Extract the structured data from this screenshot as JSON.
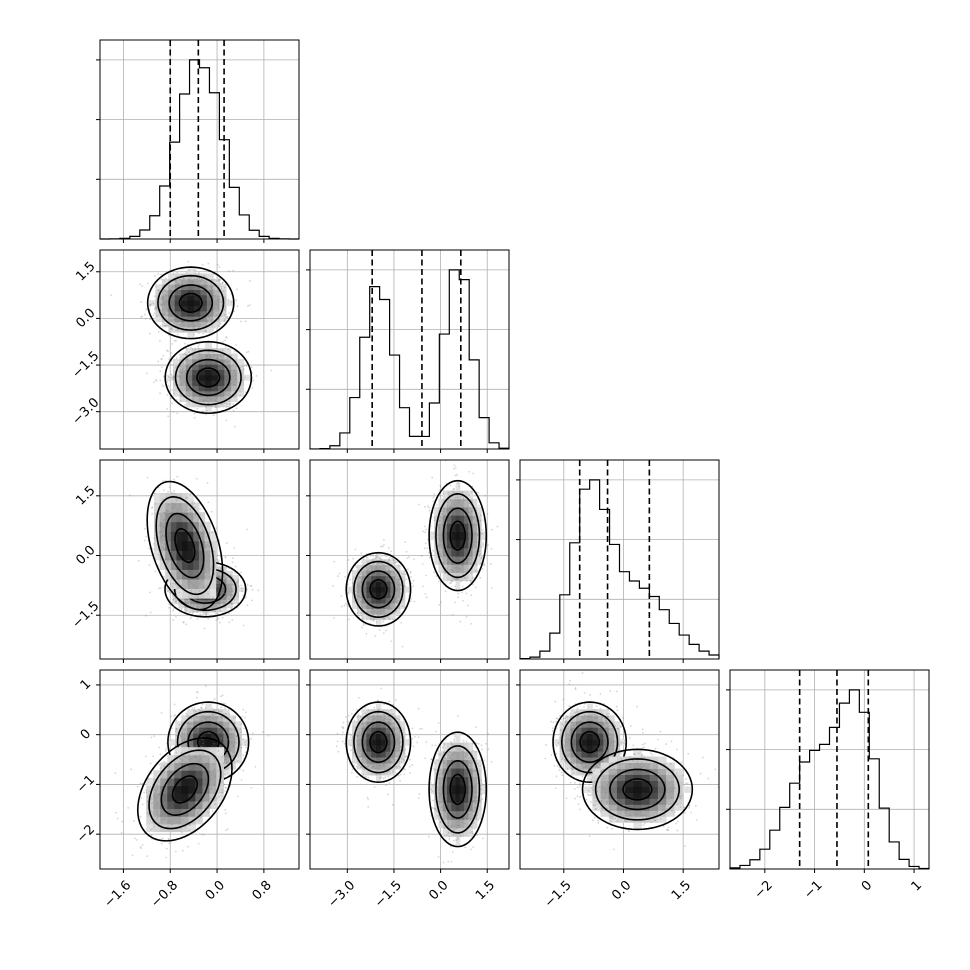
{
  "chart_data": {
    "type": "corner",
    "grid": true,
    "parameters": [
      {
        "index": 0,
        "range": [
          -2.0,
          1.4
        ],
        "ticks": [
          -1.6,
          -0.8,
          0.0,
          0.8
        ],
        "tick_labels": [
          "−1.6",
          "−0.8",
          "0.0",
          "0.8"
        ],
        "quantiles": [
          -0.8,
          -0.32,
          0.12
        ],
        "modes": [
          {
            "mean": -0.3,
            "sd": 0.38,
            "weight": 1.0
          }
        ]
      },
      {
        "index": 1,
        "range": [
          -4.2,
          2.2
        ],
        "ticks": [
          -3.0,
          -1.5,
          0.0,
          1.5
        ],
        "tick_labels": [
          "−3.0",
          "−1.5",
          "0.0",
          "1.5"
        ],
        "quantiles": [
          -2.2,
          -0.6,
          0.65
        ],
        "modes": [
          {
            "mean": -2.0,
            "sd": 0.5,
            "weight": 0.5
          },
          {
            "mean": 0.55,
            "sd": 0.45,
            "weight": 0.5
          }
        ]
      },
      {
        "index": 2,
        "range": [
          -2.6,
          2.4
        ],
        "ticks": [
          -1.5,
          0.0,
          1.5
        ],
        "tick_labels": [
          "−1.5",
          "0.0",
          "1.5"
        ],
        "quantiles": [
          -1.1,
          -0.4,
          0.65
        ],
        "modes": [
          {
            "mean": -0.85,
            "sd": 0.45,
            "weight": 0.55
          },
          {
            "mean": 0.35,
            "sd": 0.8,
            "weight": 0.45
          }
        ]
      },
      {
        "index": 3,
        "range": [
          -2.7,
          1.3
        ],
        "ticks": [
          -2,
          -1,
          0,
          1
        ],
        "tick_labels": [
          "−2",
          "−1",
          "0",
          "1"
        ],
        "quantiles": [
          -1.3,
          -0.55,
          0.08
        ],
        "modes": [
          {
            "mean": -1.1,
            "sd": 0.5,
            "weight": 0.45
          },
          {
            "mean": -0.15,
            "sd": 0.4,
            "weight": 0.55
          }
        ]
      }
    ],
    "pairs": [
      {
        "row": 1,
        "col": 0,
        "clusters": [
          {
            "cx": -0.45,
            "cy": 0.5,
            "sx": 0.32,
            "sy": 0.5,
            "rho": 0.0,
            "n": 620
          },
          {
            "cx": -0.15,
            "cy": -1.9,
            "sx": 0.32,
            "sy": 0.5,
            "rho": 0.0,
            "n": 620
          }
        ]
      },
      {
        "row": 2,
        "col": 0,
        "clusters": [
          {
            "cx": -0.2,
            "cy": -0.85,
            "sx": 0.3,
            "sy": 0.3,
            "rho": 0.0,
            "n": 650
          },
          {
            "cx": -0.55,
            "cy": 0.25,
            "sx": 0.28,
            "sy": 0.7,
            "rho": -0.4,
            "n": 550
          }
        ]
      },
      {
        "row": 2,
        "col": 1,
        "clusters": [
          {
            "cx": -2.0,
            "cy": -0.85,
            "sx": 0.45,
            "sy": 0.4,
            "rho": 0.0,
            "n": 620
          },
          {
            "cx": 0.55,
            "cy": 0.5,
            "sx": 0.4,
            "sy": 0.6,
            "rho": 0.0,
            "n": 620
          }
        ]
      },
      {
        "row": 3,
        "col": 0,
        "clusters": [
          {
            "cx": -0.15,
            "cy": -0.15,
            "sx": 0.3,
            "sy": 0.35,
            "rho": 0.0,
            "n": 650
          },
          {
            "cx": -0.55,
            "cy": -1.1,
            "sx": 0.35,
            "sy": 0.45,
            "rho": 0.4,
            "n": 550
          }
        ]
      },
      {
        "row": 3,
        "col": 1,
        "clusters": [
          {
            "cx": -2.0,
            "cy": -0.15,
            "sx": 0.45,
            "sy": 0.35,
            "rho": 0.0,
            "n": 620
          },
          {
            "cx": 0.55,
            "cy": -1.1,
            "sx": 0.4,
            "sy": 0.5,
            "rho": 0.0,
            "n": 620
          }
        ]
      },
      {
        "row": 3,
        "col": 2,
        "clusters": [
          {
            "cx": -0.85,
            "cy": -0.15,
            "sx": 0.4,
            "sy": 0.35,
            "rho": 0.0,
            "n": 650
          },
          {
            "cx": 0.35,
            "cy": -1.1,
            "sx": 0.6,
            "sy": 0.35,
            "rho": 0.0,
            "n": 550
          }
        ]
      }
    ]
  }
}
